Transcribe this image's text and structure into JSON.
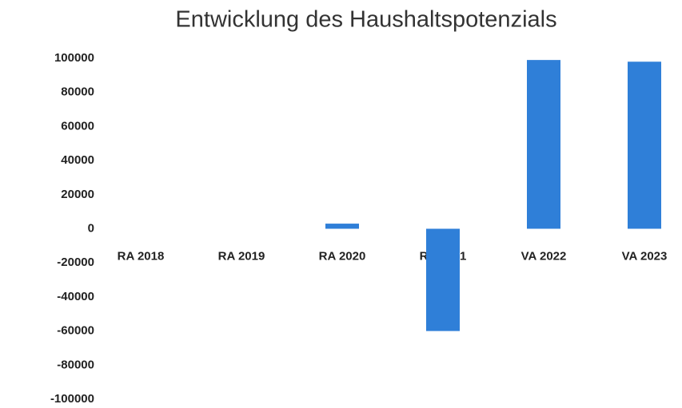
{
  "chart_data": {
    "type": "bar",
    "title": "Entwicklung des Haushaltspotenzials",
    "categories": [
      "RA 2018",
      "RA 2019",
      "RA 2020",
      "RA 2021",
      "VA 2022",
      "VA 2023"
    ],
    "values": [
      0,
      0,
      3000,
      -60000,
      99000,
      98000
    ],
    "color": "#2f7fd8",
    "ylim": [
      -100000,
      100000
    ],
    "yticks": [
      -100000,
      -80000,
      -60000,
      -40000,
      -20000,
      0,
      20000,
      40000,
      60000,
      80000,
      100000
    ],
    "grid": false
  }
}
